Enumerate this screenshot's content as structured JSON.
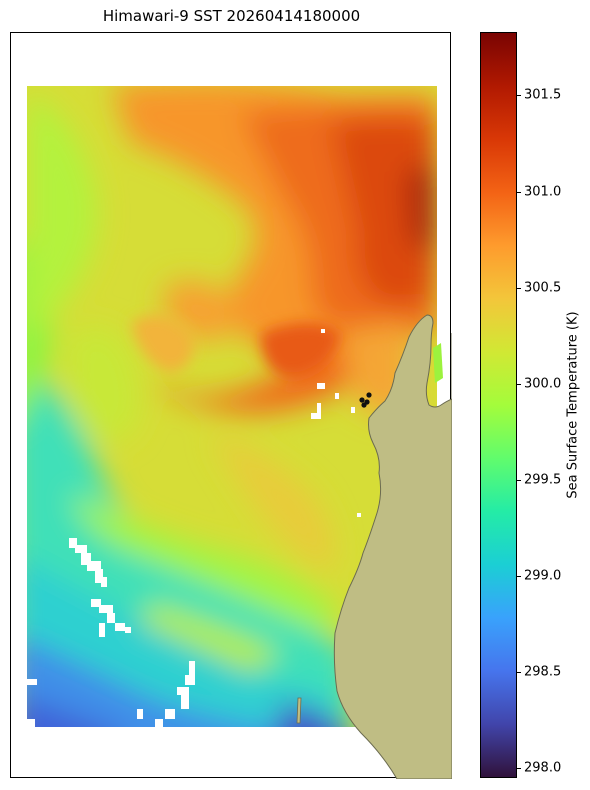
{
  "title": "Himawari-9 SST 20260414180000",
  "colorbar": {
    "label": "Sea Surface Temperature (K)",
    "min": 297.95,
    "max": 301.83,
    "ticks": [
      "298.0",
      "298.5",
      "299.0",
      "299.5",
      "300.0",
      "300.5",
      "301.0",
      "301.5"
    ],
    "colormap": [
      "#30123b",
      "#4145ab",
      "#4675ed",
      "#39a2fc",
      "#1bcfd4",
      "#24eca6",
      "#61fc6c",
      "#a4fc3b",
      "#d1e834",
      "#f3c63a",
      "#fe9b2d",
      "#f36315",
      "#d93806",
      "#b11901",
      "#7a0402"
    ]
  },
  "colors": {
    "land": "#bfbd84",
    "coastline": "#6b6b50",
    "missing_data": "#ffffff",
    "markers": "#111111"
  }
}
